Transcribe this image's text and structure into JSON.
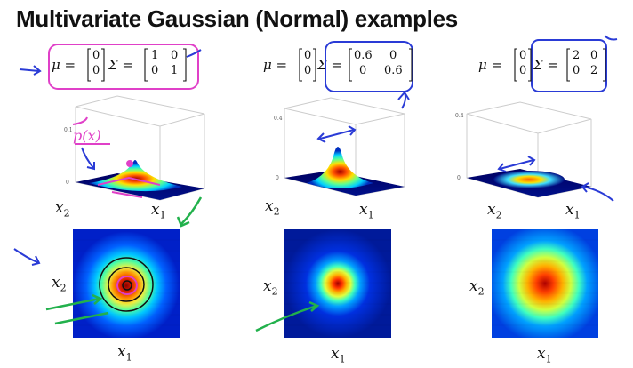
{
  "title": "Multivariate Gaussian (Normal) examples",
  "panels": [
    {
      "mu_label": "μ =",
      "mu": [
        "0",
        "0"
      ],
      "sigma_label": "Σ =",
      "sigma": [
        [
          "1",
          "0"
        ],
        [
          "0",
          "1"
        ]
      ],
      "ink": "#e040c8"
    },
    {
      "mu_label": "μ =",
      "mu": [
        "0",
        "0"
      ],
      "sigma_label": "Σ =",
      "sigma": [
        [
          "0.6",
          "0"
        ],
        [
          "0",
          "0.6"
        ]
      ],
      "ink": "#2a3bd6"
    },
    {
      "mu_label": "μ =",
      "mu": [
        "0",
        "0"
      ],
      "sigma_label": "Σ =",
      "sigma": [
        [
          "2",
          "0"
        ],
        [
          "0",
          "2"
        ]
      ],
      "ink": "#2a3bd6"
    }
  ],
  "annotation": "p(x)",
  "axis_labels": {
    "x1": "x",
    "x1_sub": "1",
    "x2": "x",
    "x2_sub": "2"
  },
  "colors": {
    "pink_ink": "#e040c8",
    "blue_ink": "#2a3bd6",
    "green_ink": "#22b14c",
    "colormap": [
      "#00008f",
      "#0050ff",
      "#00d0ff",
      "#60ff90",
      "#ffe000",
      "#ff5000",
      "#a00000"
    ]
  }
}
